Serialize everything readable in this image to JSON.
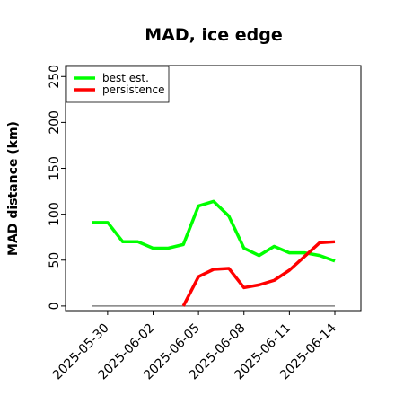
{
  "chart_data": {
    "type": "line",
    "title": "MAD, ice edge",
    "ylabel": "MAD distance (km)",
    "xlabel": "",
    "ylim": [
      -5,
      262
    ],
    "yticks": [
      0,
      50,
      100,
      150,
      200,
      250
    ],
    "x": [
      "2025-05-29",
      "2025-05-30",
      "2025-05-31",
      "2025-06-01",
      "2025-06-02",
      "2025-06-03",
      "2025-06-04",
      "2025-06-05",
      "2025-06-06",
      "2025-06-07",
      "2025-06-08",
      "2025-06-09",
      "2025-06-10",
      "2025-06-11",
      "2025-06-12",
      "2025-06-13",
      "2025-06-14"
    ],
    "xticks": [
      "2025-05-30",
      "2025-06-02",
      "2025-06-05",
      "2025-06-08",
      "2025-06-11",
      "2025-06-14"
    ],
    "legend_placement": "top-left",
    "series": [
      {
        "name": "best est.",
        "color": "#00ff00",
        "values": [
          91,
          91,
          70,
          70,
          63,
          63,
          67,
          109,
          114,
          98,
          63,
          55,
          65,
          58,
          58,
          55,
          49
        ]
      },
      {
        "name": "persistence",
        "color": "#ff0000",
        "values": [
          null,
          null,
          null,
          null,
          null,
          null,
          0,
          32,
          40,
          41,
          20,
          23,
          28,
          39,
          54,
          69,
          70
        ]
      }
    ],
    "baseline": {
      "value": 0,
      "color": "#808080"
    }
  }
}
